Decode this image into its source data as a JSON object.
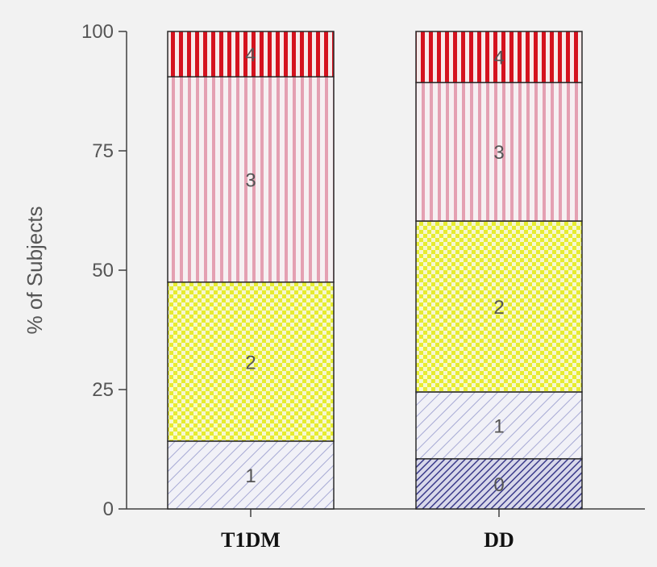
{
  "chart_data": {
    "type": "bar",
    "stacked": true,
    "title": "",
    "xlabel": "",
    "ylabel": "% of Subjects",
    "ylim": [
      0,
      100
    ],
    "yticks": [
      "0",
      "25",
      "50",
      "75",
      "100"
    ],
    "ytick_values": [
      0,
      25,
      50,
      75,
      100
    ],
    "categories": [
      "T1DM",
      "DD"
    ],
    "series": [
      {
        "label": "0",
        "values": [
          0,
          10.5
        ],
        "pattern": "dense-diagonal-navy",
        "color": "#5a5aa0"
      },
      {
        "label": "1",
        "values": [
          14.2,
          14.0
        ],
        "pattern": "diagonal-lavender",
        "color": "#9aa0cf"
      },
      {
        "label": "2",
        "values": [
          33.3,
          35.8
        ],
        "pattern": "checker-yellow",
        "color": "#e2ea2e"
      },
      {
        "label": "3",
        "values": [
          43.0,
          29.0
        ],
        "pattern": "vertical-pink",
        "color": "#e8a8b8"
      },
      {
        "label": "4",
        "values": [
          9.5,
          10.7
        ],
        "pattern": "vertical-red",
        "color": "#d81e2a"
      }
    ],
    "grid": false,
    "legend": "none"
  }
}
